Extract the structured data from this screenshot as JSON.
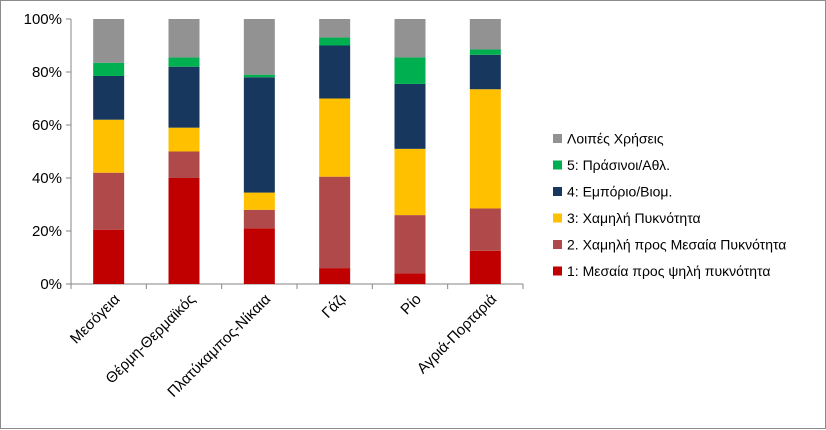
{
  "chart_data": {
    "type": "bar",
    "stacked": true,
    "percent": true,
    "categories": [
      "Μεσόγεια",
      "Θέρμη-Θερμαϊκός",
      "Πλατύκαμπος-Νίκαια",
      "Γάζι",
      "Ρίο",
      "Αγριά-Πορταριά"
    ],
    "series": [
      {
        "name": "1: Μεσαία προς ψηλή πυκνότητα",
        "color": "#c00000",
        "values": [
          20.5,
          40,
          21,
          6,
          4,
          12.5
        ]
      },
      {
        "name": "2. Χαμηλή προς Μεσαία Πυκνότητα",
        "color": "#b04a4a",
        "values": [
          21.5,
          10,
          7,
          34.5,
          22,
          16
        ]
      },
      {
        "name": "3: Χαμηλή Πυκνότητα",
        "color": "#ffc000",
        "values": [
          20,
          9,
          6.5,
          29.5,
          25,
          45
        ]
      },
      {
        "name": "4: Εμπόριο/Βιομ.",
        "color": "#17375e",
        "values": [
          16.5,
          23,
          43.5,
          20,
          24.5,
          13
        ]
      },
      {
        "name": "5: Πράσινοι/Αθλ.",
        "color": "#00b050",
        "values": [
          5,
          3.5,
          1,
          3,
          10,
          2
        ]
      },
      {
        "name": "Λοιπές Χρήσεις",
        "color": "#929292",
        "values": [
          16.5,
          14.5,
          21,
          7,
          14.5,
          11.5
        ]
      }
    ],
    "ylim": [
      0,
      100
    ],
    "yticks": [
      "0%",
      "20%",
      "40%",
      "60%",
      "80%",
      "100%"
    ],
    "legend_position": "right",
    "grid": false
  }
}
